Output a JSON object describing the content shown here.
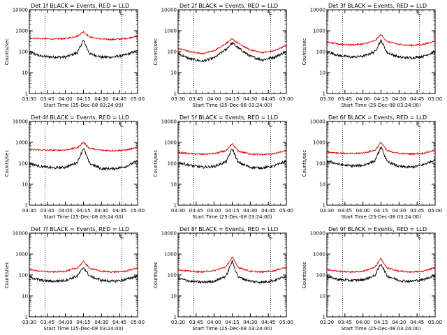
{
  "chart_data": [
    {
      "type": "line",
      "title": "Det 1f BLACK = Events, RED = LLD",
      "xlabel": "Start Time (25-Dec-08 03:24:00)",
      "ylabel": "Counts/sec",
      "yscale": "log",
      "ylim": [
        1,
        10000
      ],
      "xlim": [
        "03:30",
        "05:00"
      ],
      "x_ticks": [
        "03:30",
        "03:45",
        "04:00",
        "04:15",
        "04:30",
        "04:45",
        "05:00"
      ],
      "y_ticks": [
        "1",
        "10",
        "100",
        "1000",
        "10000"
      ],
      "annotations": {
        "vlines": [
          "03:43",
          "04:47"
        ],
        "marker": "04:46"
      },
      "series": [
        {
          "name": "Events",
          "color": "#000000",
          "x": [
            "03:30",
            "03:40",
            "03:50",
            "04:00",
            "04:10",
            "04:15",
            "04:20",
            "04:30",
            "04:40",
            "04:50",
            "05:00"
          ],
          "y": [
            95,
            60,
            55,
            55,
            90,
            350,
            80,
            55,
            55,
            70,
            110
          ]
        },
        {
          "name": "LLD",
          "color": "#e00000",
          "x": [
            "03:30",
            "03:40",
            "03:50",
            "04:00",
            "04:10",
            "04:15",
            "04:20",
            "04:30",
            "04:40",
            "04:50",
            "05:00"
          ],
          "y": [
            450,
            420,
            400,
            420,
            550,
            900,
            500,
            400,
            380,
            420,
            550
          ]
        }
      ]
    },
    {
      "type": "line",
      "title": "Det 2f BLACK = Events, RED = LLD",
      "xlabel": "Start Time (25-Dec-08 03:24:00)",
      "ylabel": "Counts/sec",
      "yscale": "log",
      "ylim": [
        1,
        10000
      ],
      "xlim": [
        "03:30",
        "05:00"
      ],
      "x_ticks": [
        "03:30",
        "03:45",
        "04:00",
        "04:15",
        "04:30",
        "04:45",
        "05:00"
      ],
      "y_ticks": [
        "1",
        "10",
        "100",
        "1000",
        "10000"
      ],
      "annotations": {
        "vlines": [
          "03:43",
          "04:47"
        ],
        "marker": "04:46"
      },
      "series": [
        {
          "name": "Events",
          "color": "#000000",
          "x": [
            "03:30",
            "03:40",
            "03:50",
            "04:00",
            "04:10",
            "04:15",
            "04:20",
            "04:30",
            "04:40",
            "04:50",
            "05:00"
          ],
          "y": [
            80,
            45,
            35,
            50,
            130,
            260,
            150,
            60,
            40,
            55,
            100
          ]
        },
        {
          "name": "LLD",
          "color": "#e00000",
          "x": [
            "03:30",
            "03:40",
            "03:50",
            "04:00",
            "04:10",
            "04:15",
            "04:20",
            "04:30",
            "04:40",
            "04:50",
            "05:00"
          ],
          "y": [
            150,
            100,
            80,
            110,
            250,
            400,
            250,
            120,
            90,
            110,
            200
          ]
        }
      ]
    },
    {
      "type": "line",
      "title": "Det 3f BLACK = Events, RED = LLD",
      "xlabel": "Start Time (25-Dec-08 03:24:00)",
      "ylabel": "Counts/sec",
      "yscale": "log",
      "ylim": [
        1,
        10000
      ],
      "xlim": [
        "03:30",
        "05:00"
      ],
      "x_ticks": [
        "03:30",
        "03:45",
        "04:00",
        "04:15",
        "04:30",
        "04:45",
        "05:00"
      ],
      "y_ticks": [
        "1",
        "10",
        "100",
        "1000",
        "10000"
      ],
      "annotations": {
        "vlines": [
          "03:43",
          "04:47"
        ],
        "marker": "04:46"
      },
      "series": [
        {
          "name": "Events",
          "color": "#000000",
          "x": [
            "03:30",
            "03:40",
            "03:50",
            "04:00",
            "04:10",
            "04:15",
            "04:20",
            "04:30",
            "04:40",
            "04:50",
            "05:00"
          ],
          "y": [
            100,
            65,
            55,
            60,
            100,
            350,
            90,
            55,
            50,
            60,
            100
          ]
        },
        {
          "name": "LLD",
          "color": "#e00000",
          "x": [
            "03:30",
            "03:40",
            "03:50",
            "04:00",
            "04:10",
            "04:15",
            "04:20",
            "04:30",
            "04:40",
            "04:50",
            "05:00"
          ],
          "y": [
            280,
            230,
            210,
            230,
            330,
            650,
            300,
            220,
            200,
            220,
            320
          ]
        }
      ]
    },
    {
      "type": "line",
      "title": "Det 4f BLACK = Events, RED = LLD",
      "xlabel": "Start Time (25-Dec-08 03:24:00)",
      "ylabel": "Counts/sec",
      "yscale": "log",
      "ylim": [
        1,
        10000
      ],
      "xlim": [
        "03:30",
        "05:00"
      ],
      "x_ticks": [
        "03:30",
        "03:45",
        "04:00",
        "04:15",
        "04:30",
        "04:45",
        "05:00"
      ],
      "y_ticks": [
        "1",
        "10",
        "100",
        "1000",
        "10000"
      ],
      "annotations": {
        "vlines": [
          "03:43",
          "04:47"
        ],
        "marker": "04:46"
      },
      "series": [
        {
          "name": "Events",
          "color": "#000000",
          "x": [
            "03:30",
            "03:40",
            "03:50",
            "04:00",
            "04:10",
            "04:15",
            "04:20",
            "04:30",
            "04:40",
            "04:50",
            "05:00"
          ],
          "y": [
            100,
            70,
            60,
            65,
            110,
            550,
            100,
            55,
            55,
            70,
            130
          ]
        },
        {
          "name": "LLD",
          "color": "#e00000",
          "x": [
            "03:30",
            "03:40",
            "03:50",
            "04:00",
            "04:10",
            "04:15",
            "04:20",
            "04:30",
            "04:40",
            "04:50",
            "05:00"
          ],
          "y": [
            450,
            430,
            420,
            430,
            560,
            1000,
            520,
            420,
            400,
            430,
            560
          ]
        }
      ]
    },
    {
      "type": "line",
      "title": "Det 5f BLACK = Events, RED = LLD",
      "xlabel": "Start Time (25-Dec-08 03:24:00)",
      "ylabel": "Counts/sec",
      "yscale": "log",
      "ylim": [
        1,
        10000
      ],
      "xlim": [
        "03:30",
        "05:00"
      ],
      "x_ticks": [
        "03:30",
        "03:45",
        "04:00",
        "04:15",
        "04:30",
        "04:45",
        "05:00"
      ],
      "y_ticks": [
        "1",
        "10",
        "100",
        "1000",
        "10000"
      ],
      "annotations": {
        "vlines": [
          "03:43",
          "04:47"
        ],
        "marker": "04:46"
      },
      "series": [
        {
          "name": "Events",
          "color": "#000000",
          "x": [
            "03:30",
            "03:40",
            "03:50",
            "04:00",
            "04:10",
            "04:15",
            "04:20",
            "04:30",
            "04:40",
            "04:50",
            "05:00"
          ],
          "y": [
            110,
            80,
            65,
            70,
            120,
            500,
            110,
            65,
            60,
            75,
            130
          ]
        },
        {
          "name": "LLD",
          "color": "#e00000",
          "x": [
            "03:30",
            "03:40",
            "03:50",
            "04:00",
            "04:10",
            "04:15",
            "04:20",
            "04:30",
            "04:40",
            "04:50",
            "05:00"
          ],
          "y": [
            330,
            290,
            270,
            290,
            400,
            850,
            380,
            280,
            260,
            290,
            400
          ]
        }
      ]
    },
    {
      "type": "line",
      "title": "Det 6f BLACK = Events, RED = LLD",
      "xlabel": "Start Time (25-Dec-08 03:24:00)",
      "ylabel": "Counts/sec",
      "yscale": "log",
      "ylim": [
        1,
        10000
      ],
      "xlim": [
        "03:30",
        "05:00"
      ],
      "x_ticks": [
        "03:30",
        "03:45",
        "04:00",
        "04:15",
        "04:30",
        "04:45",
        "05:00"
      ],
      "y_ticks": [
        "1",
        "10",
        "100",
        "1000",
        "10000"
      ],
      "annotations": {
        "vlines": [
          "03:43",
          "04:47"
        ],
        "marker": "04:46"
      },
      "series": [
        {
          "name": "Events",
          "color": "#000000",
          "x": [
            "03:30",
            "03:40",
            "03:50",
            "04:00",
            "04:10",
            "04:15",
            "04:20",
            "04:30",
            "04:40",
            "04:50",
            "05:00"
          ],
          "y": [
            130,
            90,
            75,
            80,
            130,
            600,
            120,
            70,
            65,
            85,
            150
          ]
        },
        {
          "name": "LLD",
          "color": "#e00000",
          "x": [
            "03:30",
            "03:40",
            "03:50",
            "04:00",
            "04:10",
            "04:15",
            "04:20",
            "04:30",
            "04:40",
            "04:50",
            "05:00"
          ],
          "y": [
            350,
            310,
            290,
            310,
            420,
            1000,
            400,
            300,
            280,
            300,
            420
          ]
        }
      ]
    },
    {
      "type": "line",
      "title": "Det 7f BLACK = Events, RED = LLD",
      "xlabel": "Start Time (25-Dec-08 03:24:00)",
      "ylabel": "Counts/sec",
      "yscale": "log",
      "ylim": [
        1,
        10000
      ],
      "xlim": [
        "03:30",
        "05:00"
      ],
      "x_ticks": [
        "03:30",
        "03:45",
        "04:00",
        "04:15",
        "04:30",
        "04:45",
        "05:00"
      ],
      "y_ticks": [
        "1",
        "10",
        "100",
        "1000",
        "10000"
      ],
      "annotations": {
        "vlines": [
          "03:43",
          "04:47"
        ],
        "marker": "04:46"
      },
      "series": [
        {
          "name": "Events",
          "color": "#000000",
          "x": [
            "03:30",
            "03:40",
            "03:50",
            "04:00",
            "04:10",
            "04:15",
            "04:20",
            "04:30",
            "04:40",
            "04:50",
            "05:00"
          ],
          "y": [
            80,
            55,
            50,
            55,
            90,
            230,
            90,
            55,
            50,
            60,
            90
          ]
        },
        {
          "name": "LLD",
          "color": "#e00000",
          "x": [
            "03:30",
            "03:40",
            "03:50",
            "04:00",
            "04:10",
            "04:15",
            "04:20",
            "04:30",
            "04:40",
            "04:50",
            "05:00"
          ],
          "y": [
            180,
            150,
            140,
            150,
            220,
            450,
            210,
            150,
            140,
            150,
            220
          ]
        }
      ]
    },
    {
      "type": "line",
      "title": "Det 8f BLACK = Events, RED = LLD",
      "xlabel": "Start Time (25-Dec-08 03:24:00)",
      "ylabel": "Counts/sec",
      "yscale": "log",
      "ylim": [
        1,
        10000
      ],
      "xlim": [
        "03:30",
        "05:00"
      ],
      "x_ticks": [
        "03:30",
        "03:45",
        "04:00",
        "04:15",
        "04:30",
        "04:45",
        "05:00"
      ],
      "y_ticks": [
        "1",
        "10",
        "100",
        "1000",
        "10000"
      ],
      "annotations": {
        "vlines": [
          "03:43",
          "04:47"
        ],
        "marker": "04:46"
      },
      "series": [
        {
          "name": "Events",
          "color": "#000000",
          "x": [
            "03:30",
            "03:40",
            "03:50",
            "04:00",
            "04:10",
            "04:15",
            "04:20",
            "04:30",
            "04:40",
            "04:50",
            "05:00"
          ],
          "y": [
            70,
            50,
            45,
            50,
            90,
            450,
            80,
            50,
            45,
            55,
            90
          ]
        },
        {
          "name": "LLD",
          "color": "#e00000",
          "x": [
            "03:30",
            "03:40",
            "03:50",
            "04:00",
            "04:10",
            "04:15",
            "04:20",
            "04:30",
            "04:40",
            "04:50",
            "05:00"
          ],
          "y": [
            180,
            150,
            140,
            160,
            250,
            700,
            230,
            150,
            140,
            160,
            240
          ]
        }
      ]
    },
    {
      "type": "line",
      "title": "Det 9f BLACK = Events, RED = LLD",
      "xlabel": "Start Time (25-Dec-08 03:24:00)",
      "ylabel": "Counts/sec",
      "yscale": "log",
      "ylim": [
        1,
        10000
      ],
      "xlim": [
        "03:30",
        "05:00"
      ],
      "x_ticks": [
        "03:30",
        "03:45",
        "04:00",
        "04:15",
        "04:30",
        "04:45",
        "05:00"
      ],
      "y_ticks": [
        "1",
        "10",
        "100",
        "1000",
        "10000"
      ],
      "annotations": {
        "vlines": [
          "03:43",
          "04:47"
        ],
        "marker": "04:46"
      },
      "series": [
        {
          "name": "Events",
          "color": "#000000",
          "x": [
            "03:30",
            "03:40",
            "03:50",
            "04:00",
            "04:10",
            "04:15",
            "04:20",
            "04:30",
            "04:40",
            "04:50",
            "05:00"
          ],
          "y": [
            85,
            60,
            55,
            58,
            95,
            350,
            90,
            55,
            50,
            60,
            95
          ]
        },
        {
          "name": "LLD",
          "color": "#e00000",
          "x": [
            "03:30",
            "03:40",
            "03:50",
            "04:00",
            "04:10",
            "04:15",
            "04:20",
            "04:30",
            "04:40",
            "04:50",
            "05:00"
          ],
          "y": [
            180,
            150,
            140,
            150,
            230,
            600,
            220,
            150,
            140,
            150,
            230
          ]
        }
      ]
    }
  ]
}
